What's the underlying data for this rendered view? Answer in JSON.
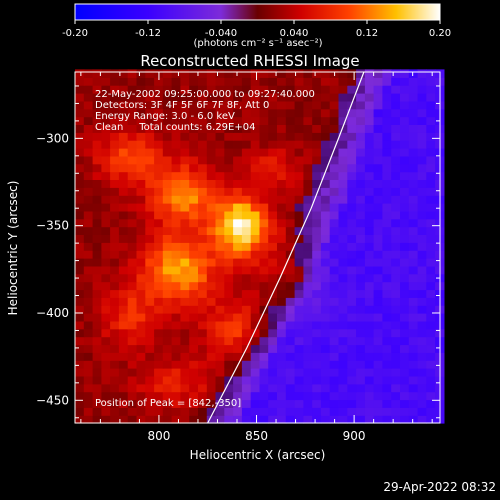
{
  "colorbar": {
    "ticks": [
      "-0.20",
      "-0.12",
      "-0.040",
      "0.040",
      "0.12",
      "0.20"
    ],
    "units": "(photons cm⁻² s⁻¹ asec⁻²)",
    "range": [
      -0.2,
      0.2
    ]
  },
  "annotations": {
    "time": "22-May-2002 09:25:00.000 to 09:27:40.000",
    "detectors": "Detectors: 3F 4F 5F 6F 7F 8F, Att 0",
    "energy": "Energy Range: 3.0 - 6.0 keV",
    "clean": "Clean     Total counts: 6.29E+04",
    "peak": "Position of Peak = [842,-350]"
  },
  "footer": "29-Apr-2022 08:32",
  "chart_data": {
    "type": "heatmap",
    "title": "Reconstructed RHESSI Image",
    "xlabel": "Heliocentric X (arcsec)",
    "ylabel": "Heliocentric Y (arcsec)",
    "xlim": [
      757,
      944
    ],
    "ylim": [
      -463,
      -262
    ],
    "x_ticks": [
      800,
      850,
      900
    ],
    "y_ticks": [
      -300,
      -350,
      -400,
      -450
    ],
    "peak": [
      842,
      -350
    ],
    "colormap": "rhessi-blue-purple-red-yellow-white",
    "sources": [
      {
        "x": 842,
        "y": -350,
        "amp": 0.17,
        "sx": 10,
        "sy": 12
      },
      {
        "x": 810,
        "y": -375,
        "amp": 0.12,
        "sx": 14,
        "sy": 14
      },
      {
        "x": 812,
        "y": -332,
        "amp": 0.11,
        "sx": 12,
        "sy": 12
      },
      {
        "x": 785,
        "y": -310,
        "amp": 0.08,
        "sx": 12,
        "sy": 10
      },
      {
        "x": 840,
        "y": -410,
        "amp": 0.07,
        "sx": 12,
        "sy": 12
      },
      {
        "x": 785,
        "y": -402,
        "amp": 0.06,
        "sx": 10,
        "sy": 12
      },
      {
        "x": 870,
        "y": -380,
        "amp": 0.06,
        "sx": 10,
        "sy": 14
      },
      {
        "x": 857,
        "y": -317,
        "amp": 0.05,
        "sx": 10,
        "sy": 8
      },
      {
        "x": 808,
        "y": -440,
        "amp": 0.05,
        "sx": 14,
        "sy": 10
      }
    ],
    "background": -0.1,
    "limb": [
      [
        825,
        -463
      ],
      [
        845,
        -420
      ],
      [
        862,
        -380
      ],
      [
        878,
        -340
      ],
      [
        892,
        -300
      ],
      [
        905,
        -262
      ]
    ]
  }
}
